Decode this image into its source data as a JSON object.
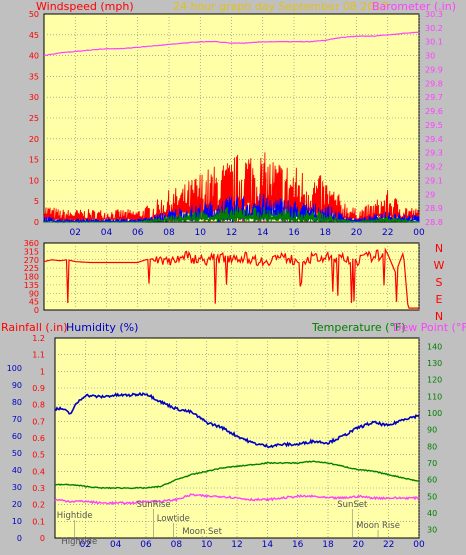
{
  "header": {
    "left_label": "Windspeed (mph)",
    "center_label": "24 hour graph day   September 08 2017",
    "right_label": "Barometer (.in)"
  },
  "colors": {
    "background": "#c0c0c0",
    "plot_bg": "#ffffa8",
    "grid": "#7f7f7f",
    "red": "#ff0000",
    "magenta": "#ff40ff",
    "blue": "#0000ff",
    "green": "#008000",
    "dark_blue": "#0000c0",
    "gold": "#e0c020"
  },
  "chart_data": [
    {
      "type": "line",
      "name": "wind-barometer",
      "x_ticks": [
        "02",
        "04",
        "06",
        "08",
        "10",
        "12",
        "14",
        "16",
        "18",
        "20",
        "22",
        "00"
      ],
      "y_left": {
        "label": "Windspeed (mph)",
        "ticks": [
          "0",
          "5",
          "10",
          "15",
          "20",
          "25",
          "30",
          "35",
          "40",
          "45",
          "50"
        ],
        "ylim": [
          0,
          50
        ]
      },
      "y_right": {
        "label": "Barometer (.in)",
        "ticks": [
          "28.8",
          "28.9",
          "29",
          "29.1",
          "29.2",
          "29.3",
          "29.4",
          "29.5",
          "29.6",
          "29.7",
          "29.8",
          "29.9",
          "30",
          "30.1",
          "30.2",
          "30.3"
        ],
        "ylim": [
          28.8,
          30.3
        ]
      },
      "series": [
        {
          "name": "Barometer (.in)",
          "axis": "right",
          "color": "#ff40ff",
          "x": [
            0,
            1,
            2,
            3,
            4,
            5,
            6,
            7,
            8,
            9,
            10,
            11,
            12,
            13,
            14,
            15,
            16,
            17,
            18,
            19,
            20,
            21,
            22,
            23,
            24
          ],
          "y": [
            30.0,
            30.02,
            30.03,
            30.04,
            30.05,
            30.05,
            30.06,
            30.07,
            30.08,
            30.09,
            30.1,
            30.1,
            30.09,
            30.09,
            30.1,
            30.1,
            30.1,
            30.1,
            30.11,
            30.13,
            30.14,
            30.14,
            30.15,
            30.16,
            30.17
          ]
        },
        {
          "name": "Windspeed (mph)",
          "axis": "left",
          "color": "#ff0000",
          "style": "spiky",
          "x": [
            0,
            1,
            2,
            3,
            4,
            5,
            6,
            7,
            8,
            9,
            10,
            11,
            12,
            13,
            14,
            15,
            16,
            17,
            18,
            19,
            20,
            21,
            22,
            23,
            24
          ],
          "y": [
            3,
            2,
            2,
            2,
            2,
            2,
            2,
            3,
            5,
            6,
            8,
            9,
            10,
            12,
            11,
            10,
            9,
            8,
            7,
            4,
            2,
            3,
            5,
            3,
            2
          ]
        },
        {
          "name": "Wind avg",
          "axis": "left",
          "color": "#0000ff",
          "style": "spiky",
          "x": [
            0,
            1,
            2,
            3,
            4,
            5,
            6,
            7,
            8,
            9,
            10,
            11,
            12,
            13,
            14,
            15,
            16,
            17,
            18,
            19,
            20,
            21,
            22,
            23,
            24
          ],
          "y": [
            1,
            0.5,
            0.5,
            0.5,
            0.5,
            0.5,
            0.5,
            1,
            2,
            2.5,
            3,
            3.5,
            4,
            4.5,
            4.5,
            4,
            3.5,
            3,
            3,
            1.5,
            0.5,
            1,
            2,
            1.5,
            1
          ]
        },
        {
          "name": "Wind low",
          "axis": "left",
          "color": "#008000",
          "style": "spiky",
          "x": [
            0,
            1,
            2,
            3,
            4,
            5,
            6,
            7,
            8,
            9,
            10,
            11,
            12,
            13,
            14,
            15,
            16,
            17,
            18,
            19,
            20,
            21,
            22,
            23,
            24
          ],
          "y": [
            0,
            0,
            0,
            0,
            0,
            0,
            0,
            0.5,
            1,
            1.5,
            2,
            2,
            2.5,
            2.5,
            2.5,
            2,
            2,
            2,
            1.5,
            0.5,
            0,
            0.5,
            1,
            0.5,
            0
          ]
        }
      ]
    },
    {
      "type": "line",
      "name": "wind-direction",
      "y_left": {
        "ticks": [
          "0",
          "45",
          "90",
          "135",
          "180",
          "225",
          "270",
          "315",
          "360"
        ],
        "ylim": [
          0,
          360
        ]
      },
      "y_right_labels": [
        "N",
        "W",
        "S",
        "E",
        "N"
      ],
      "series": [
        {
          "name": "Direction",
          "color": "#ff0000",
          "x": [
            0,
            0.5,
            1,
            1.5,
            2,
            3,
            4,
            5,
            6,
            6.5,
            7,
            8,
            9,
            10,
            11,
            12,
            13,
            14,
            15,
            16,
            17,
            18,
            19,
            20,
            21,
            22,
            22.5,
            23,
            23.3,
            24
          ],
          "y": [
            260,
            270,
            265,
            270,
            260,
            255,
            255,
            255,
            255,
            270,
            275,
            265,
            290,
            270,
            275,
            285,
            280,
            260,
            285,
            270,
            275,
            280,
            275,
            265,
            290,
            300,
            200,
            310,
            10,
            10
          ]
        }
      ]
    },
    {
      "type": "line",
      "name": "rain-humidity-temperature",
      "header": {
        "rain": "Rainfall (.in)",
        "humidity": "Humidity (%)",
        "temperature": "Temperature (°F)",
        "dewpoint": "Dew Point (°F)"
      },
      "y_rain": {
        "ticks": [
          "0",
          "0.1",
          "0.2",
          "0.3",
          "0.4",
          "0.5",
          "0.6",
          "0.7",
          "0.8",
          "0.9",
          "1",
          "1.1",
          "1.2"
        ],
        "ylim": [
          0,
          1.2
        ]
      },
      "y_humidity": {
        "ticks": [
          "0",
          "10",
          "20",
          "30",
          "40",
          "50",
          "60",
          "70",
          "80",
          "90",
          "100"
        ],
        "ylim": [
          0,
          100
        ]
      },
      "y_temp": {
        "ticks": [
          "30",
          "40",
          "50",
          "60",
          "70",
          "80",
          "90",
          "100",
          "110",
          "120",
          "130",
          "140"
        ],
        "ylim": [
          25,
          145
        ]
      },
      "x_ticks": [
        "02",
        "04",
        "06",
        "08",
        "10",
        "12",
        "14",
        "16",
        "18",
        "20",
        "22",
        "00"
      ],
      "annotations": [
        {
          "text": "Hightide",
          "x": 1.3
        },
        {
          "text": "SunRise",
          "x": 6.5
        },
        {
          "text": "Lowtide",
          "x": 7.8
        },
        {
          "text": "Moon Set",
          "x": 9.7
        },
        {
          "text": "SunSet",
          "x": 19.6
        },
        {
          "text": "Moon Rise",
          "x": 21.3
        },
        {
          "text": "Hightide",
          "x": 1.6
        }
      ],
      "series": [
        {
          "name": "Humidity (%)",
          "axis": "humidity",
          "color": "#0000c0",
          "x": [
            0,
            0.5,
            1,
            1.5,
            2,
            3,
            4,
            5,
            6,
            7,
            8,
            9,
            10,
            11,
            12,
            13,
            14,
            15,
            16,
            17,
            18,
            19,
            20,
            21,
            22,
            23,
            24
          ],
          "y": [
            76,
            76,
            73,
            80,
            84,
            83,
            84,
            84,
            85,
            80,
            76,
            74,
            68,
            65,
            60,
            56,
            54,
            55,
            55,
            57,
            56,
            60,
            65,
            68,
            66,
            70,
            72
          ]
        },
        {
          "name": "Temperature (°F)",
          "axis": "temp",
          "color": "#008000",
          "x": [
            0,
            1,
            2,
            3,
            4,
            5,
            6,
            7,
            8,
            9,
            10,
            11,
            12,
            13,
            14,
            15,
            16,
            17,
            18,
            19,
            20,
            21,
            22,
            23,
            24
          ],
          "y": [
            57,
            57,
            56,
            55,
            55,
            55,
            55,
            56,
            60,
            63,
            65,
            67,
            68,
            69,
            70,
            70,
            70,
            71,
            70,
            68,
            66,
            65,
            63,
            61,
            59
          ]
        },
        {
          "name": "Dew Point (°F)",
          "axis": "temp",
          "color": "#ff40ff",
          "x": [
            0,
            1,
            2,
            3,
            4,
            5,
            6,
            7,
            8,
            9,
            10,
            11,
            12,
            13,
            14,
            15,
            16,
            17,
            18,
            19,
            20,
            21,
            22,
            23,
            24
          ],
          "y": [
            48,
            47,
            47,
            46,
            46,
            46,
            47,
            47,
            48,
            51,
            50,
            50,
            49,
            48,
            48,
            49,
            50,
            50,
            49,
            49,
            50,
            49,
            49,
            49,
            49
          ]
        }
      ]
    }
  ]
}
